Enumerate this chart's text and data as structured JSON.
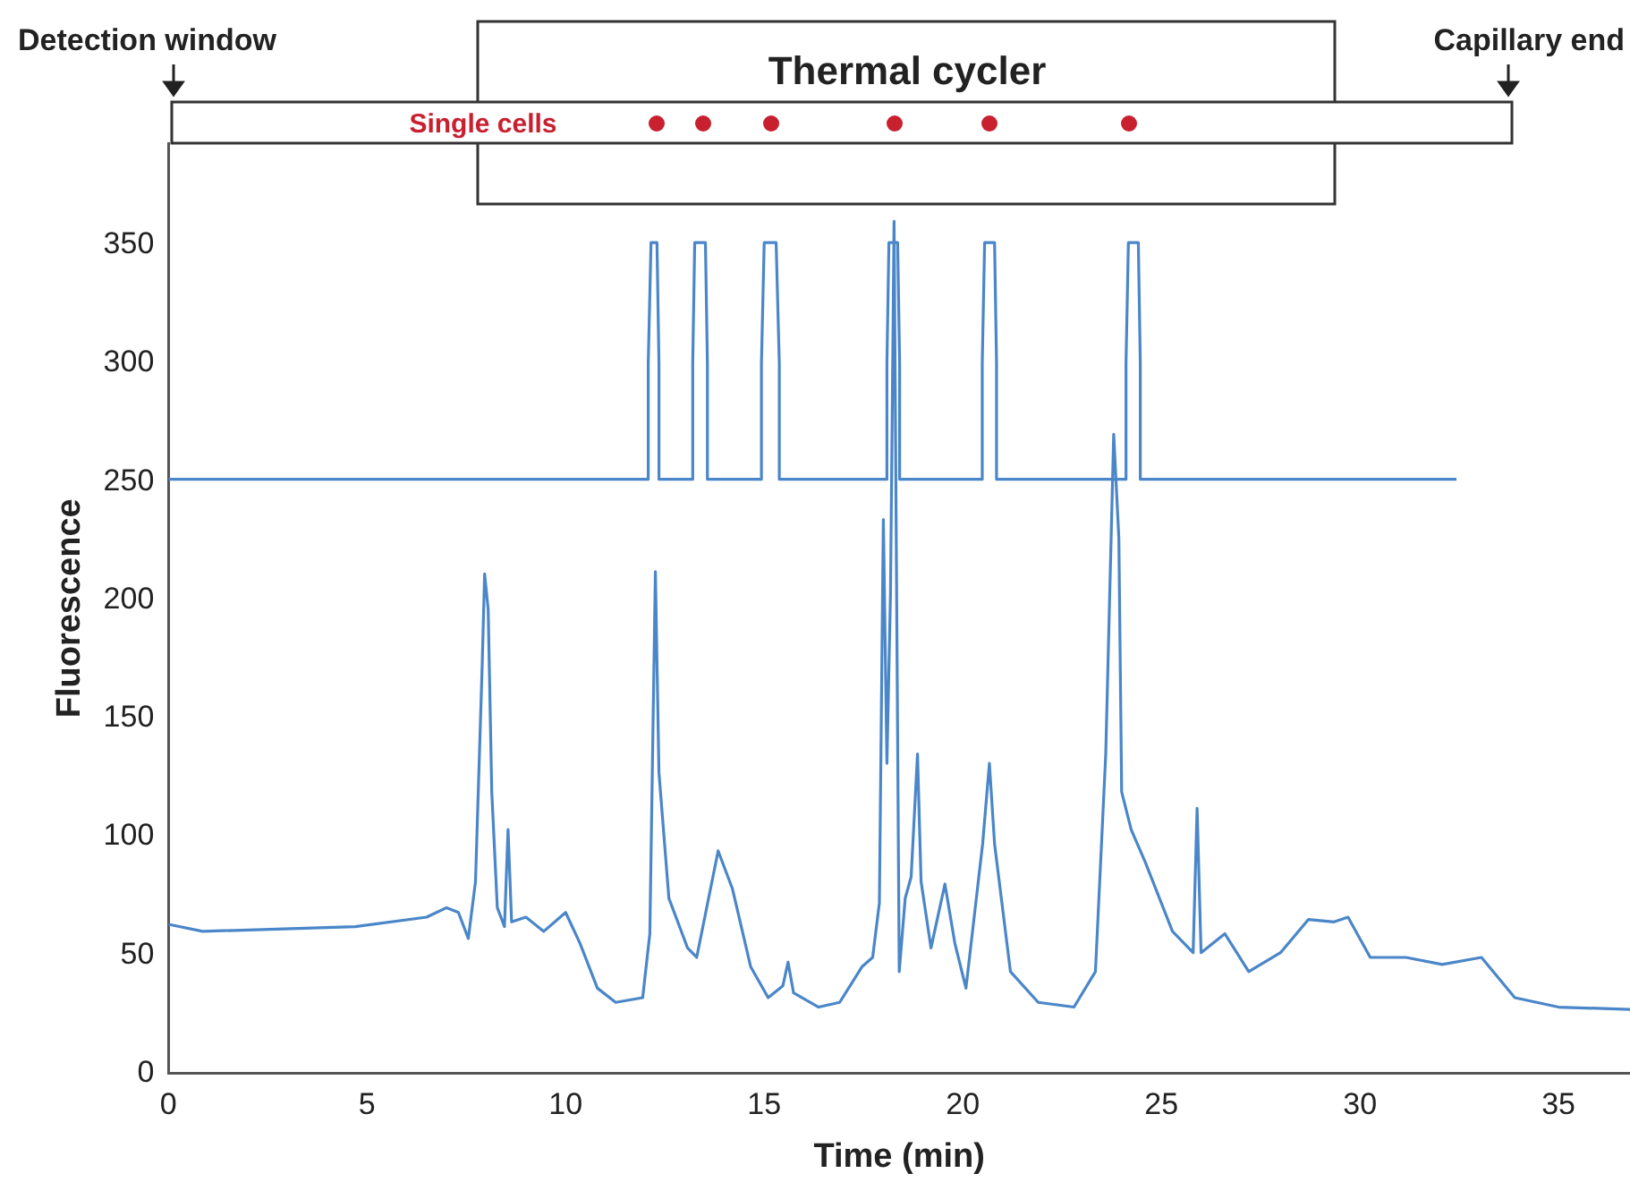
{
  "chart_data": {
    "type": "line",
    "xlabel": "Time (min)",
    "ylabel": "Fluorescence",
    "xlim": [
      0,
      36.8
    ],
    "xticks": [
      0,
      5,
      10,
      15,
      20,
      25,
      30,
      35
    ],
    "ylim": [
      0,
      393
    ],
    "yticks": [
      0,
      50,
      100,
      150,
      200,
      250,
      300,
      350
    ],
    "grid": false,
    "legend": false,
    "marker": "none",
    "line_style": "solid",
    "annotations": [
      "Detection window",
      "Thermal cycler",
      "Single cells",
      "Capillary end"
    ],
    "series": [
      {
        "color": "#4a86c8",
        "x": [
          0,
          12.08,
          12.08,
          12.15,
          12.3,
          12.35,
          12.35,
          13.2,
          13.2,
          13.25,
          13.52,
          13.57,
          13.57,
          14.93,
          14.93,
          15.0,
          15.3,
          15.38,
          15.38,
          18.09,
          18.09,
          18.14,
          18.36,
          18.41,
          18.41,
          20.49,
          20.49,
          20.55,
          20.8,
          20.85,
          20.85,
          24.11,
          24.11,
          24.17,
          24.42,
          24.47,
          24.47,
          32.43
        ],
        "values": [
          251,
          251,
          300,
          351,
          351,
          300,
          251,
          251,
          300,
          351,
          351,
          300,
          251,
          251,
          300,
          351,
          351,
          300,
          251,
          251,
          300,
          351,
          351,
          300,
          251,
          251,
          300,
          351,
          351,
          300,
          251,
          251,
          300,
          351,
          351,
          300,
          251,
          251
        ]
      },
      {
        "color": "#4a86c8",
        "x": [
          0,
          0.86,
          4.7,
          6.5,
          7.0,
          7.3,
          7.55,
          7.73,
          7.9,
          7.96,
          8.05,
          8.14,
          8.28,
          8.46,
          8.55,
          8.64,
          9.0,
          9.45,
          10.0,
          10.36,
          10.8,
          11.26,
          11.94,
          12.12,
          12.26,
          12.35,
          12.6,
          13.07,
          13.3,
          13.84,
          14.2,
          14.66,
          15.1,
          15.47,
          15.6,
          15.74,
          16.37,
          16.9,
          17.46,
          17.73,
          17.9,
          18.0,
          18.09,
          18.18,
          18.27,
          18.4,
          18.55,
          18.7,
          18.86,
          18.95,
          19.2,
          19.55,
          19.8,
          20.08,
          20.5,
          20.67,
          20.8,
          21.2,
          21.9,
          22.8,
          23.34,
          23.6,
          23.8,
          23.93,
          24.0,
          24.24,
          24.6,
          25.28,
          25.8,
          25.9,
          26.0,
          26.6,
          27.2,
          28.0,
          28.7,
          29.35,
          29.7,
          30.26,
          31.16,
          32.07,
          33.06,
          33.9,
          35.0,
          36.8
        ],
        "values": [
          63,
          60,
          62,
          66,
          70,
          68,
          57,
          81,
          173,
          211,
          196,
          119,
          70,
          62,
          103,
          64,
          66,
          60,
          68,
          55,
          36,
          30,
          32,
          59,
          212,
          127,
          74,
          53,
          49,
          94,
          78,
          45,
          32,
          37,
          47,
          34,
          28,
          30,
          45,
          49,
          72,
          234,
          131,
          203,
          360,
          43,
          74,
          83,
          135,
          81,
          53,
          80,
          55,
          36,
          97,
          131,
          97,
          43,
          30,
          28,
          43,
          135,
          270,
          226,
          119,
          103,
          89,
          60,
          51,
          112,
          51,
          59,
          43,
          51,
          65,
          64,
          66,
          49,
          49,
          46,
          49,
          32,
          28,
          27
        ]
      }
    ]
  }
}
